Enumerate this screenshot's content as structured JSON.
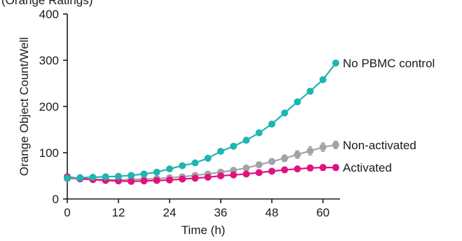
{
  "top_text": "(Orange Ratings)",
  "chart_data": {
    "type": "line",
    "xlabel": "Time (h)",
    "ylabel": "Orange Object Count/Well",
    "xlim": [
      0,
      64
    ],
    "ylim": [
      0,
      400
    ],
    "xticks": [
      0,
      12,
      24,
      36,
      48,
      60
    ],
    "yticks": [
      0,
      100,
      200,
      300,
      400
    ],
    "grid": false,
    "legend": "inline-right",
    "x": [
      0,
      3,
      6,
      9,
      12,
      15,
      18,
      21,
      24,
      27,
      30,
      33,
      36,
      39,
      42,
      45,
      48,
      51,
      54,
      57,
      60,
      63
    ],
    "series": [
      {
        "name": "No PBMC control",
        "color": "#1fb5b0",
        "values": [
          45,
          46,
          47,
          48,
          49,
          51,
          54,
          58,
          65,
          72,
          78,
          88,
          103,
          114,
          127,
          143,
          162,
          186,
          210,
          233,
          258,
          294
        ],
        "errors": [
          0,
          0,
          0,
          0,
          0,
          0,
          0,
          0,
          0,
          0,
          0,
          0,
          0,
          0,
          0,
          0,
          0,
          0,
          0,
          0,
          0,
          0
        ]
      },
      {
        "name": "Non-activated",
        "color": "#a3a3a3",
        "values": [
          44,
          43,
          42,
          42,
          41,
          42,
          43,
          44,
          46,
          48,
          51,
          54,
          58,
          62,
          67,
          74,
          81,
          88,
          96,
          104,
          112,
          117
        ],
        "errors": [
          1,
          1,
          1,
          1,
          1,
          1,
          1,
          1,
          1,
          1,
          2,
          2,
          3,
          3,
          4,
          5,
          6,
          7,
          8,
          9,
          9,
          8
        ]
      },
      {
        "name": "Activated",
        "color": "#e0127f",
        "values": [
          48,
          44,
          42,
          40,
          39,
          38,
          39,
          40,
          41,
          43,
          45,
          47,
          50,
          52,
          54,
          57,
          60,
          63,
          65,
          67,
          68,
          68
        ],
        "errors": [
          2,
          2,
          2,
          2,
          2,
          2,
          2,
          2,
          2,
          2,
          3,
          3,
          3,
          3,
          4,
          4,
          4,
          5,
          5,
          6,
          6,
          6
        ]
      }
    ]
  }
}
